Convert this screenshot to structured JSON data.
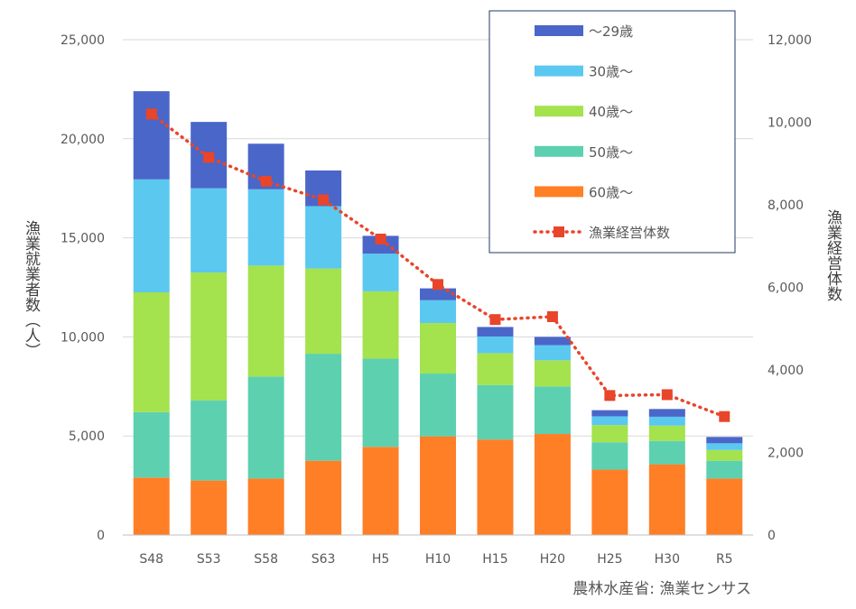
{
  "chart_data": {
    "type": "bar",
    "stacked": true,
    "categories": [
      "S48",
      "S53",
      "S58",
      "S63",
      "H5",
      "H10",
      "H15",
      "H20",
      "H25",
      "H30",
      "R5"
    ],
    "series": [
      {
        "name": "60歳～",
        "color": "#FF7F27",
        "values": [
          2900,
          2750,
          2850,
          3750,
          4450,
          4980,
          4820,
          5100,
          3300,
          3570,
          2850
        ]
      },
      {
        "name": "50歳～",
        "color": "#5DD0B0",
        "values": [
          3300,
          4050,
          5150,
          5400,
          4450,
          3170,
          2750,
          2400,
          1380,
          1180,
          900
        ]
      },
      {
        "name": "40歳～",
        "color": "#A4E24E",
        "values": [
          6050,
          6450,
          5600,
          4300,
          3400,
          2550,
          1610,
          1320,
          870,
          770,
          540
        ]
      },
      {
        "name": "30歳～",
        "color": "#5BC8F0",
        "values": [
          5700,
          4250,
          3850,
          3150,
          1900,
          1150,
          840,
          760,
          440,
          450,
          340
        ]
      },
      {
        "name": "～29歳",
        "color": "#4A66C8",
        "values": [
          4450,
          3350,
          2300,
          1800,
          900,
          600,
          480,
          420,
          310,
          390,
          320
        ]
      }
    ],
    "line_series": {
      "name": "漁業経営体数",
      "color": "#E8452A",
      "axis": "right",
      "values": [
        10200,
        9150,
        8570,
        8120,
        7170,
        6070,
        5220,
        5290,
        3380,
        3400,
        2870
      ]
    },
    "y_left": {
      "label": "漁業就業者数（人）",
      "ylim": [
        0,
        25000
      ],
      "ticks": [
        "0",
        "5,000",
        "10,000",
        "15,000",
        "20,000",
        "25,000"
      ]
    },
    "y_right": {
      "label": "漁業経営体数",
      "ylim": [
        0,
        12000
      ],
      "ticks": [
        "0",
        "2,000",
        "4,000",
        "6,000",
        "8,000",
        "10,000",
        "12,000"
      ]
    },
    "grid": true,
    "legend_position": "top-right",
    "legend_order": [
      "～29歳",
      "30歳～",
      "40歳～",
      "50歳～",
      "60歳～",
      "漁業経営体数"
    ],
    "source": "農林水産省: 漁業センサス"
  }
}
